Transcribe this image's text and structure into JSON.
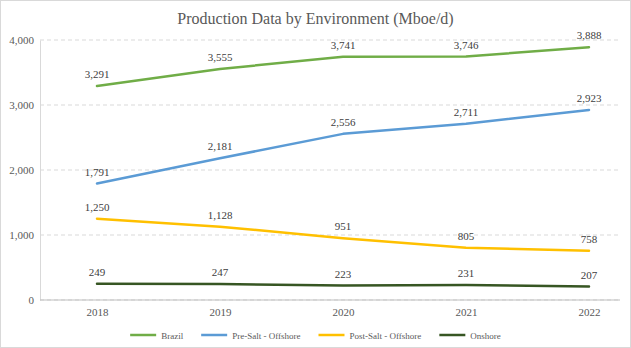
{
  "chart_data": {
    "type": "line",
    "title": "Production Data by Environment (Mboe/d)",
    "categories": [
      "2018",
      "2019",
      "2020",
      "2021",
      "2022"
    ],
    "series": [
      {
        "name": "Brazil",
        "color": "#70ad47",
        "values": [
          3291,
          3555,
          3741,
          3746,
          3888
        ],
        "value_labels": [
          "3,291",
          "3,555",
          "3,741",
          "3,746",
          "3,888"
        ]
      },
      {
        "name": "Pre-Salt - Offshore",
        "color": "#5b9bd5",
        "values": [
          1791,
          2181,
          2556,
          2711,
          2923
        ],
        "value_labels": [
          "1,791",
          "2,181",
          "2,556",
          "2,711",
          "2,923"
        ]
      },
      {
        "name": "Post-Salt - Offshore",
        "color": "#ffc000",
        "values": [
          1250,
          1128,
          951,
          805,
          758
        ],
        "value_labels": [
          "1,250",
          "1,128",
          "951",
          "805",
          "758"
        ]
      },
      {
        "name": "Onshore",
        "color": "#375623",
        "values": [
          249,
          247,
          223,
          231,
          207
        ]
      }
    ],
    "ylim": [
      0,
      4000
    ],
    "yticks": [
      0,
      {
        "value": 1000,
        "label": "1,000"
      },
      {
        "value": 2000,
        "label": "2,000"
      },
      {
        "value": 3000,
        "label": "3,000"
      },
      {
        "value": 4000,
        "label": "4,000"
      }
    ],
    "grid": true,
    "legend": "bottom",
    "data_labels": true
  }
}
